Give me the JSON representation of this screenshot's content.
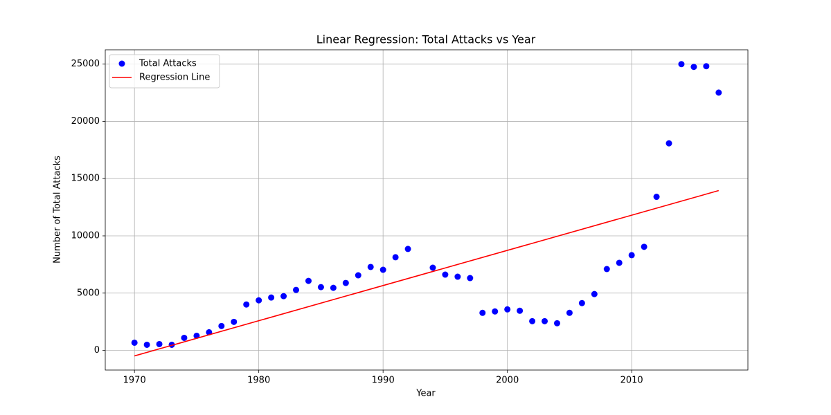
{
  "chart_data": {
    "type": "scatter",
    "title": "Linear Regression: Total Attacks vs Year",
    "x_label": "Year",
    "y_label": "Number of Total Attacks",
    "xlim": [
      1967.65,
      2019.35
    ],
    "ylim": [
      -1720,
      26250
    ],
    "xticks": [
      1970,
      1980,
      1990,
      2000,
      2010
    ],
    "yticks": [
      0,
      5000,
      10000,
      15000,
      20000,
      25000
    ],
    "grid": true,
    "legend": "upper left",
    "series": [
      {
        "name": "Total Attacks",
        "type": "scatter",
        "color": "#0000ff",
        "x": [
          1970,
          1971,
          1972,
          1973,
          1974,
          1975,
          1976,
          1977,
          1978,
          1979,
          1980,
          1981,
          1982,
          1983,
          1984,
          1985,
          1986,
          1987,
          1988,
          1989,
          1990,
          1991,
          1992,
          1994,
          1995,
          1996,
          1997,
          1998,
          1999,
          2000,
          2001,
          2002,
          2003,
          2004,
          2005,
          2006,
          2007,
          2008,
          2009,
          2010,
          2011,
          2012,
          2013,
          2014,
          2015,
          2016,
          2017
        ],
        "values": [
          667,
          486,
          546,
          486,
          1092,
          1274,
          1578,
          2124,
          2488,
          4005,
          4369,
          4612,
          4733,
          5279,
          6068,
          5522,
          5461,
          5886,
          6553,
          7282,
          7039,
          8131,
          8859,
          7221,
          6614,
          6432,
          6311,
          3277,
          3398,
          3580,
          3459,
          2549,
          2549,
          2367,
          3277,
          4126,
          4915,
          7100,
          7646,
          8313,
          9041,
          13410,
          18083,
          25000,
          24757,
          24818,
          22512
        ]
      },
      {
        "name": "Regression Line",
        "type": "line",
        "color": "#ff0000",
        "x": [
          1970,
          2017
        ],
        "values": [
          -485,
          13956
        ]
      }
    ]
  }
}
